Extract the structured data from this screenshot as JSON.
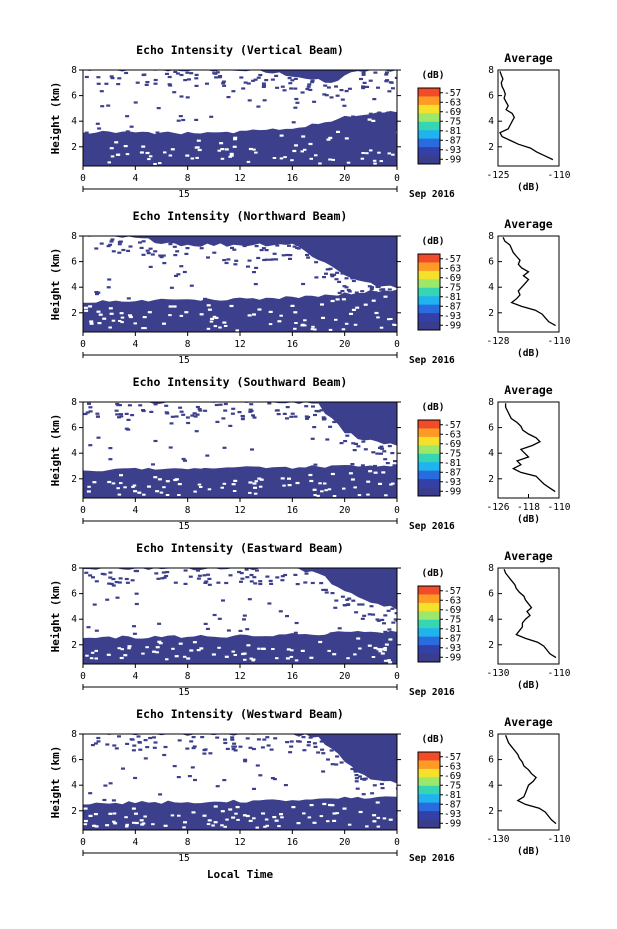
{
  "figure": {
    "xlabel": "Local Time",
    "date_label": "Sep 2016",
    "day_label": "15",
    "colorbar_unit": "(dB)",
    "colorbar_ticks": [
      "-57",
      "-63",
      "-69",
      "-75",
      "-81",
      "-87",
      "-93",
      "-99"
    ],
    "colorbar_colors": [
      "#f24b2a",
      "#ff9b25",
      "#f5e02c",
      "#9be86a",
      "#36d6b5",
      "#1fb3ef",
      "#2a6bdf",
      "#3340a8",
      "#3a3d8c"
    ],
    "background_color": "#3b3f8c",
    "no_echo_color": "#ffffff",
    "avg_title": "Average",
    "avg_xlabel": "(dB)"
  },
  "chart_data": [
    {
      "type": "heatmap",
      "title": "Echo Intensity (Vertical Beam)",
      "ylabel": "Height (km)",
      "xlim": [
        0,
        24
      ],
      "xticks": [
        "0",
        "4",
        "8",
        "12",
        "16",
        "20",
        "0"
      ],
      "ylim": [
        0.5,
        8
      ],
      "yticks": [
        "2",
        "4",
        "6",
        "8"
      ],
      "echo_top_km": {
        "hours": [
          0,
          4,
          8,
          12,
          16,
          19,
          20,
          22,
          24
        ],
        "values": [
          8,
          8,
          8,
          8,
          7.6,
          6.9,
          7.6,
          8,
          8
        ]
      },
      "echo_base_km": {
        "hours": [
          0,
          4,
          8,
          12,
          16,
          20,
          22,
          24
        ],
        "values": [
          3.1,
          3.15,
          3.05,
          3.2,
          3.45,
          4.3,
          4.6,
          4.8
        ]
      },
      "average": {
        "xlim": [
          -125,
          -110
        ],
        "xticks": [
          "-125",
          "-110"
        ],
        "ylim": [
          0.5,
          8
        ],
        "yticks": [
          "2",
          "4",
          "6",
          "8"
        ],
        "height_km": [
          1.0,
          1.3,
          1.6,
          1.9,
          2.2,
          2.5,
          2.8,
          3.1,
          3.4,
          3.7,
          4.0,
          4.3,
          4.6,
          4.9,
          5.2,
          5.5,
          5.8,
          6.1,
          6.4,
          6.7,
          7.0,
          7.3,
          7.6,
          7.9
        ],
        "db": [
          -111.5,
          -113.5,
          -115.5,
          -117,
          -120,
          -122,
          -124,
          -124.5,
          -122.5,
          -122,
          -121.5,
          -121,
          -121.5,
          -123,
          -122.5,
          -123,
          -123.5,
          -123.2,
          -123.5,
          -124,
          -124.2,
          -123.8,
          -124.2,
          -124.5
        ]
      }
    },
    {
      "type": "heatmap",
      "title": "Echo Intensity (Northward Beam)",
      "ylabel": "Height (km)",
      "xlim": [
        0,
        24
      ],
      "xticks": [
        "0",
        "4",
        "8",
        "12",
        "16",
        "20",
        "0"
      ],
      "ylim": [
        0.5,
        8
      ],
      "yticks": [
        "2",
        "4",
        "6",
        "8"
      ],
      "echo_top_km": {
        "hours": [
          0,
          4,
          8,
          12,
          16,
          20,
          22,
          24
        ],
        "values": [
          8,
          7.8,
          7.3,
          7.3,
          7.4,
          5.0,
          4.2,
          3.9
        ]
      },
      "echo_base_km": {
        "hours": [
          0,
          4,
          8,
          12,
          16,
          20,
          22,
          24
        ],
        "values": [
          2.9,
          3.0,
          3.0,
          3.1,
          3.2,
          3.5,
          3.7,
          3.8
        ]
      },
      "average": {
        "xlim": [
          -128,
          -110
        ],
        "xticks": [
          "-128",
          "-110"
        ],
        "ylim": [
          0.5,
          8
        ],
        "yticks": [
          "2",
          "4",
          "6",
          "8"
        ],
        "height_km": [
          1.0,
          1.3,
          1.6,
          1.9,
          2.2,
          2.5,
          2.8,
          3.1,
          3.4,
          3.7,
          4.0,
          4.3,
          4.6,
          4.9,
          5.2,
          5.5,
          5.8,
          6.1,
          6.4,
          6.7,
          7.0,
          7.3,
          7.6,
          7.9
        ],
        "db": [
          -111,
          -113,
          -114,
          -115,
          -117,
          -121,
          -124,
          -122.5,
          -121.5,
          -122,
          -121,
          -120,
          -119,
          -120.5,
          -119,
          -121,
          -122,
          -121.5,
          -122.5,
          -123.5,
          -124,
          -124.5,
          -126,
          -126.5
        ]
      }
    },
    {
      "type": "heatmap",
      "title": "Echo Intensity (Southward Beam)",
      "ylabel": "Height (km)",
      "xlim": [
        0,
        24
      ],
      "xticks": [
        "0",
        "4",
        "8",
        "12",
        "16",
        "20",
        "0"
      ],
      "ylim": [
        0.5,
        8
      ],
      "yticks": [
        "2",
        "4",
        "6",
        "8"
      ],
      "echo_top_km": {
        "hours": [
          0,
          4,
          8,
          12,
          16,
          18,
          20,
          22,
          24
        ],
        "values": [
          8,
          8,
          8,
          8,
          8,
          7.8,
          5.6,
          4.9,
          4.6
        ]
      },
      "echo_base_km": {
        "hours": [
          0,
          4,
          8,
          12,
          16,
          20,
          24
        ],
        "values": [
          2.7,
          2.75,
          2.8,
          2.85,
          2.9,
          3.0,
          3.1
        ]
      },
      "average": {
        "xlim": [
          -126,
          -110
        ],
        "xticks": [
          "-126",
          "-118",
          "-110"
        ],
        "ylim": [
          0.5,
          8
        ],
        "yticks": [
          "2",
          "4",
          "6",
          "8"
        ],
        "height_km": [
          1.0,
          1.3,
          1.6,
          1.9,
          2.2,
          2.5,
          2.8,
          3.1,
          3.4,
          3.7,
          4.0,
          4.3,
          4.6,
          4.9,
          5.2,
          5.5,
          5.8,
          6.1,
          6.4,
          6.7,
          7.0,
          7.3,
          7.6,
          7.9
        ],
        "db": [
          -111,
          -112.5,
          -114,
          -115,
          -116,
          -120,
          -122,
          -120,
          -121,
          -118,
          -119,
          -120,
          -117,
          -115,
          -116,
          -118,
          -119.5,
          -120,
          -121,
          -122.5,
          -123,
          -123.5,
          -124,
          -124
        ]
      }
    },
    {
      "type": "heatmap",
      "title": "Echo Intensity (Eastward Beam)",
      "ylabel": "Height (km)",
      "xlim": [
        0,
        24
      ],
      "xticks": [
        "0",
        "4",
        "8",
        "12",
        "16",
        "20",
        "0"
      ],
      "ylim": [
        0.5,
        8
      ],
      "yticks": [
        "2",
        "4",
        "6",
        "8"
      ],
      "echo_top_km": {
        "hours": [
          0,
          4,
          8,
          12,
          16,
          18,
          20,
          22,
          24
        ],
        "values": [
          8,
          8,
          8,
          8,
          8,
          7.6,
          6.1,
          5.2,
          4.9
        ]
      },
      "echo_base_km": {
        "hours": [
          0,
          4,
          8,
          12,
          16,
          20,
          24
        ],
        "values": [
          2.6,
          2.6,
          2.65,
          2.7,
          2.8,
          2.95,
          3.0
        ]
      },
      "average": {
        "xlim": [
          -130,
          -110
        ],
        "xticks": [
          "-130",
          "-110"
        ],
        "ylim": [
          0.5,
          8
        ],
        "yticks": [
          "2",
          "4",
          "6",
          "8"
        ],
        "height_km": [
          1.0,
          1.3,
          1.6,
          1.9,
          2.2,
          2.5,
          2.8,
          3.1,
          3.4,
          3.7,
          4.0,
          4.3,
          4.6,
          4.9,
          5.2,
          5.5,
          5.8,
          6.1,
          6.4,
          6.7,
          7.0,
          7.3,
          7.6,
          7.9
        ],
        "db": [
          -111,
          -113,
          -114,
          -115,
          -117,
          -121,
          -124,
          -123,
          -122,
          -122,
          -121,
          -119.5,
          -120.5,
          -119,
          -120,
          -121,
          -121.5,
          -123,
          -124,
          -124.5,
          -125.5,
          -126.5,
          -127.5,
          -128
        ]
      }
    },
    {
      "type": "heatmap",
      "title": "Echo Intensity (Westward Beam)",
      "ylabel": "Height (km)",
      "xlim": [
        0,
        24
      ],
      "xticks": [
        "0",
        "4",
        "8",
        "12",
        "16",
        "20",
        "0"
      ],
      "ylim": [
        0.5,
        8
      ],
      "yticks": [
        "2",
        "4",
        "6",
        "8"
      ],
      "echo_top_km": {
        "hours": [
          0,
          4,
          8,
          12,
          16,
          18,
          20,
          22,
          24
        ],
        "values": [
          8,
          8,
          8,
          8,
          8,
          7.8,
          5.8,
          4.4,
          4.1
        ]
      },
      "echo_base_km": {
        "hours": [
          0,
          4,
          8,
          12,
          16,
          20,
          24
        ],
        "values": [
          2.6,
          2.65,
          2.7,
          2.75,
          2.85,
          3.0,
          3.1
        ]
      },
      "average": {
        "xlim": [
          -130,
          -110
        ],
        "xticks": [
          "-130",
          "-110"
        ],
        "ylim": [
          0.5,
          8
        ],
        "yticks": [
          "2",
          "4",
          "6",
          "8"
        ],
        "height_km": [
          1.0,
          1.3,
          1.6,
          1.9,
          2.2,
          2.5,
          2.8,
          3.1,
          3.4,
          3.7,
          4.0,
          4.3,
          4.6,
          4.9,
          5.2,
          5.5,
          5.8,
          6.1,
          6.4,
          6.7,
          7.0,
          7.3,
          7.6,
          7.9
        ],
        "db": [
          -111,
          -112.5,
          -113.5,
          -114.5,
          -116.5,
          -121,
          -123.5,
          -121.5,
          -121,
          -120.5,
          -120,
          -118.5,
          -117.5,
          -119,
          -120,
          -121.5,
          -122,
          -123,
          -123.5,
          -124.5,
          -125.5,
          -126.5,
          -127,
          -127.5
        ]
      }
    }
  ]
}
